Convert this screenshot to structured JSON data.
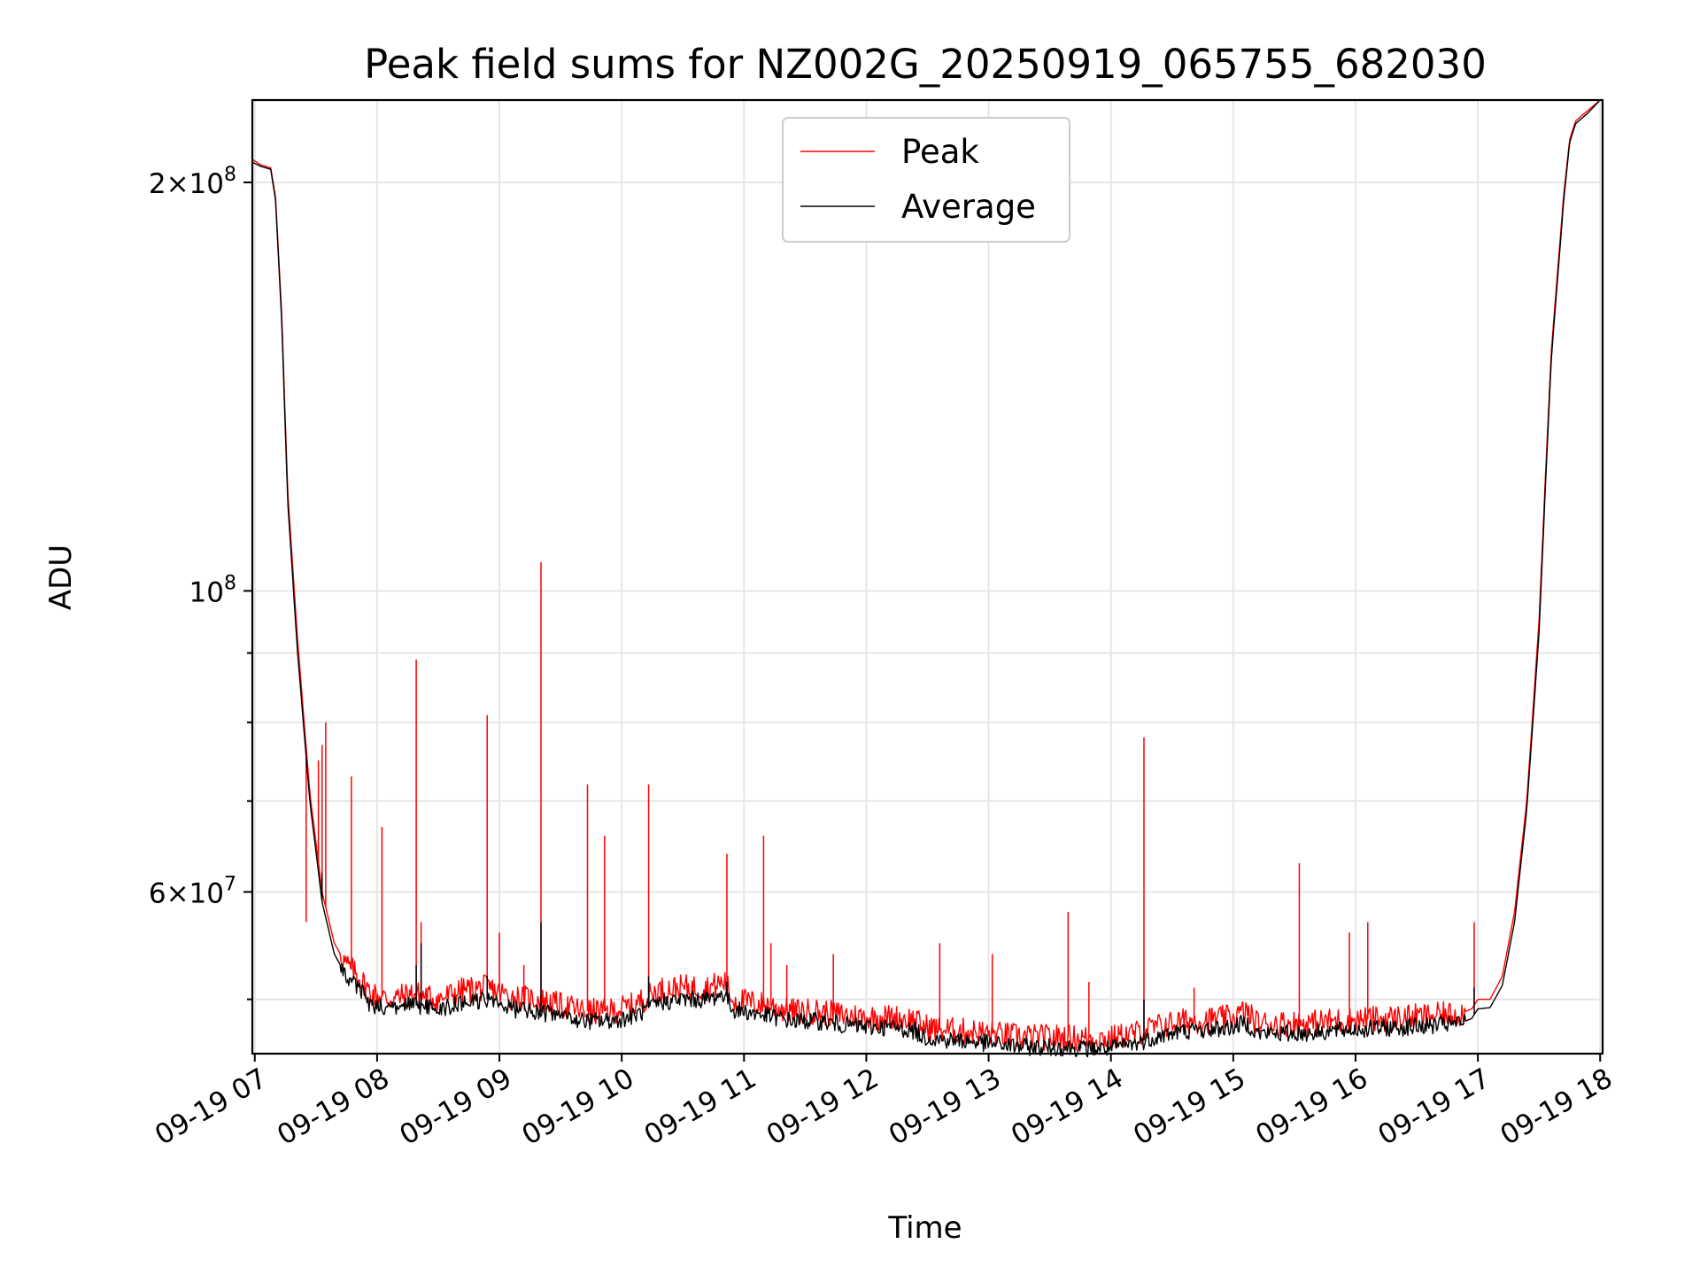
{
  "chart_data": {
    "type": "line",
    "title": "Peak field sums for NZ002G_20250919_065755_682030",
    "xlabel": "Time",
    "ylabel": "ADU",
    "y_scale": "log",
    "ylim": [
      45600000,
      230000000
    ],
    "xlim_hours": [
      6.98,
      18.02
    ],
    "grid": true,
    "legend_position": "upper center",
    "x_ticks": [
      {
        "hour": 7,
        "label": "09-19 07"
      },
      {
        "hour": 8,
        "label": "09-19 08"
      },
      {
        "hour": 9,
        "label": "09-19 09"
      },
      {
        "hour": 10,
        "label": "09-19 10"
      },
      {
        "hour": 11,
        "label": "09-19 11"
      },
      {
        "hour": 12,
        "label": "09-19 12"
      },
      {
        "hour": 13,
        "label": "09-19 13"
      },
      {
        "hour": 14,
        "label": "09-19 14"
      },
      {
        "hour": 15,
        "label": "09-19 15"
      },
      {
        "hour": 16,
        "label": "09-19 16"
      },
      {
        "hour": 17,
        "label": "09-19 17"
      },
      {
        "hour": 18,
        "label": "09-19 18"
      }
    ],
    "y_major_ticks": [
      {
        "value": 200000000,
        "mantissa": "2",
        "exp": "8"
      },
      {
        "value": 100000000,
        "mantissa": "",
        "exp": "8"
      },
      {
        "value": 60000000,
        "mantissa": "6",
        "exp": "7"
      }
    ],
    "y_minor_ticks": [
      50000000,
      70000000,
      80000000,
      90000000
    ],
    "series": [
      {
        "name": "Peak",
        "color": "#ff0000",
        "baseline_hours": [
          6.98,
          7.05,
          7.13,
          7.17,
          7.22,
          7.27,
          7.35,
          7.45,
          7.55,
          7.65,
          7.75,
          7.85,
          7.95,
          8.1,
          8.3,
          8.5,
          8.7,
          8.9,
          9.1,
          9.3,
          9.5,
          9.7,
          9.9,
          10.1,
          10.3,
          10.5,
          10.7,
          10.85,
          10.9,
          11.2,
          11.4,
          11.6,
          11.8,
          12.0,
          12.2,
          12.4,
          12.45,
          12.6,
          12.8,
          13.0,
          13.2,
          13.4,
          13.6,
          13.8,
          14.0,
          14.2,
          14.4,
          14.6,
          14.8,
          15.0,
          15.1,
          15.2,
          15.4,
          15.6,
          15.8,
          16.0,
          16.2,
          16.4,
          16.6,
          16.85,
          16.95,
          17.0,
          17.1,
          17.2,
          17.3,
          17.4,
          17.5,
          17.55,
          17.6,
          17.7,
          17.75,
          17.8,
          17.9,
          18.0
        ],
        "baseline_values": [
          208000000,
          206000000,
          205000000,
          195000000,
          160000000,
          118000000,
          92000000,
          71000000,
          60000000,
          55000000,
          53000000,
          52000000,
          50500000,
          50000000,
          50500000,
          50000000,
          50800000,
          51000000,
          50200000,
          50000000,
          49500000,
          49000000,
          49000000,
          49500000,
          50800000,
          51000000,
          51000000,
          51500000,
          50000000,
          49500000,
          49000000,
          49000000,
          48700000,
          48500000,
          48500000,
          48300000,
          47800000,
          47500000,
          47400000,
          47200000,
          47000000,
          46900000,
          46900000,
          46800000,
          46800000,
          47200000,
          47800000,
          48200000,
          48300000,
          48500000,
          49000000,
          48000000,
          48000000,
          48000000,
          48200000,
          48300000,
          48400000,
          48500000,
          48600000,
          48800000,
          49200000,
          50000000,
          50000000,
          52000000,
          58000000,
          70000000,
          95000000,
          120000000,
          150000000,
          195000000,
          215000000,
          222000000,
          226000000,
          230000000
        ],
        "spikes": [
          [
            7.52,
            75000000
          ],
          [
            7.55,
            77000000
          ],
          [
            7.58,
            80000000
          ],
          [
            7.79,
            73000000
          ],
          [
            8.04,
            67000000
          ],
          [
            8.32,
            89000000
          ],
          [
            8.36,
            57000000
          ],
          [
            8.9,
            81000000
          ],
          [
            9.0,
            56000000
          ],
          [
            9.34,
            105000000
          ],
          [
            9.72,
            72000000
          ],
          [
            9.86,
            66000000
          ],
          [
            10.22,
            72000000
          ],
          [
            10.86,
            64000000
          ],
          [
            11.16,
            66000000
          ],
          [
            11.22,
            55000000
          ],
          [
            11.35,
            53000000
          ],
          [
            11.73,
            54000000
          ],
          [
            12.6,
            55000000
          ],
          [
            13.03,
            54000000
          ],
          [
            13.65,
            58000000
          ],
          [
            13.82,
            51500000
          ],
          [
            14.27,
            78000000
          ],
          [
            14.68,
            51000000
          ],
          [
            15.54,
            63000000
          ],
          [
            15.95,
            56000000
          ],
          [
            16.1,
            57000000
          ],
          [
            16.97,
            57000000
          ],
          [
            7.42,
            57000000
          ],
          [
            9.2,
            53000000
          ]
        ]
      },
      {
        "name": "Average",
        "color": "#000000",
        "baseline_hours": [
          6.98,
          7.05,
          7.13,
          7.17,
          7.22,
          7.27,
          7.35,
          7.45,
          7.55,
          7.65,
          7.75,
          7.85,
          7.95,
          8.1,
          8.3,
          8.5,
          8.7,
          8.9,
          9.1,
          9.3,
          9.5,
          9.7,
          9.9,
          10.1,
          10.3,
          10.5,
          10.7,
          10.85,
          10.9,
          11.2,
          11.4,
          11.6,
          11.8,
          12.0,
          12.2,
          12.4,
          12.45,
          12.6,
          12.8,
          13.0,
          13.2,
          13.4,
          13.6,
          13.8,
          14.0,
          14.2,
          14.4,
          14.6,
          14.8,
          15.0,
          15.1,
          15.2,
          15.4,
          15.6,
          15.8,
          16.0,
          16.2,
          16.4,
          16.6,
          16.85,
          16.95,
          17.0,
          17.1,
          17.2,
          17.3,
          17.4,
          17.5,
          17.55,
          17.6,
          17.7,
          17.75,
          17.8,
          17.9,
          18.0
        ],
        "baseline_values": [
          207000000,
          205500000,
          204500000,
          194000000,
          158000000,
          116000000,
          90000000,
          70000000,
          59000000,
          54000000,
          52000000,
          51000000,
          49500000,
          49300000,
          49500000,
          49200000,
          49700000,
          50000000,
          49200000,
          49000000,
          48600000,
          48200000,
          48200000,
          48600000,
          49700000,
          50000000,
          50000000,
          50500000,
          49200000,
          48600000,
          48200000,
          48200000,
          47900000,
          47700000,
          47700000,
          47400000,
          47000000,
          46700000,
          46600000,
          46400000,
          46200000,
          46100000,
          46100000,
          46000000,
          46000000,
          46400000,
          47000000,
          47400000,
          47500000,
          47700000,
          48100000,
          47200000,
          47200000,
          47200000,
          47400000,
          47500000,
          47600000,
          47700000,
          47800000,
          48000000,
          48400000,
          49200000,
          49300000,
          51200000,
          57000000,
          69000000,
          93000000,
          118000000,
          148000000,
          193000000,
          214000000,
          221000000,
          225000000,
          230000000
        ],
        "spikes": [
          [
            7.55,
            62000000
          ],
          [
            8.32,
            53000000
          ],
          [
            8.36,
            55000000
          ],
          [
            8.9,
            52000000
          ],
          [
            9.34,
            57000000
          ],
          [
            10.22,
            52000000
          ],
          [
            10.86,
            51500000
          ],
          [
            14.27,
            50000000
          ],
          [
            16.97,
            51000000
          ]
        ]
      }
    ]
  }
}
